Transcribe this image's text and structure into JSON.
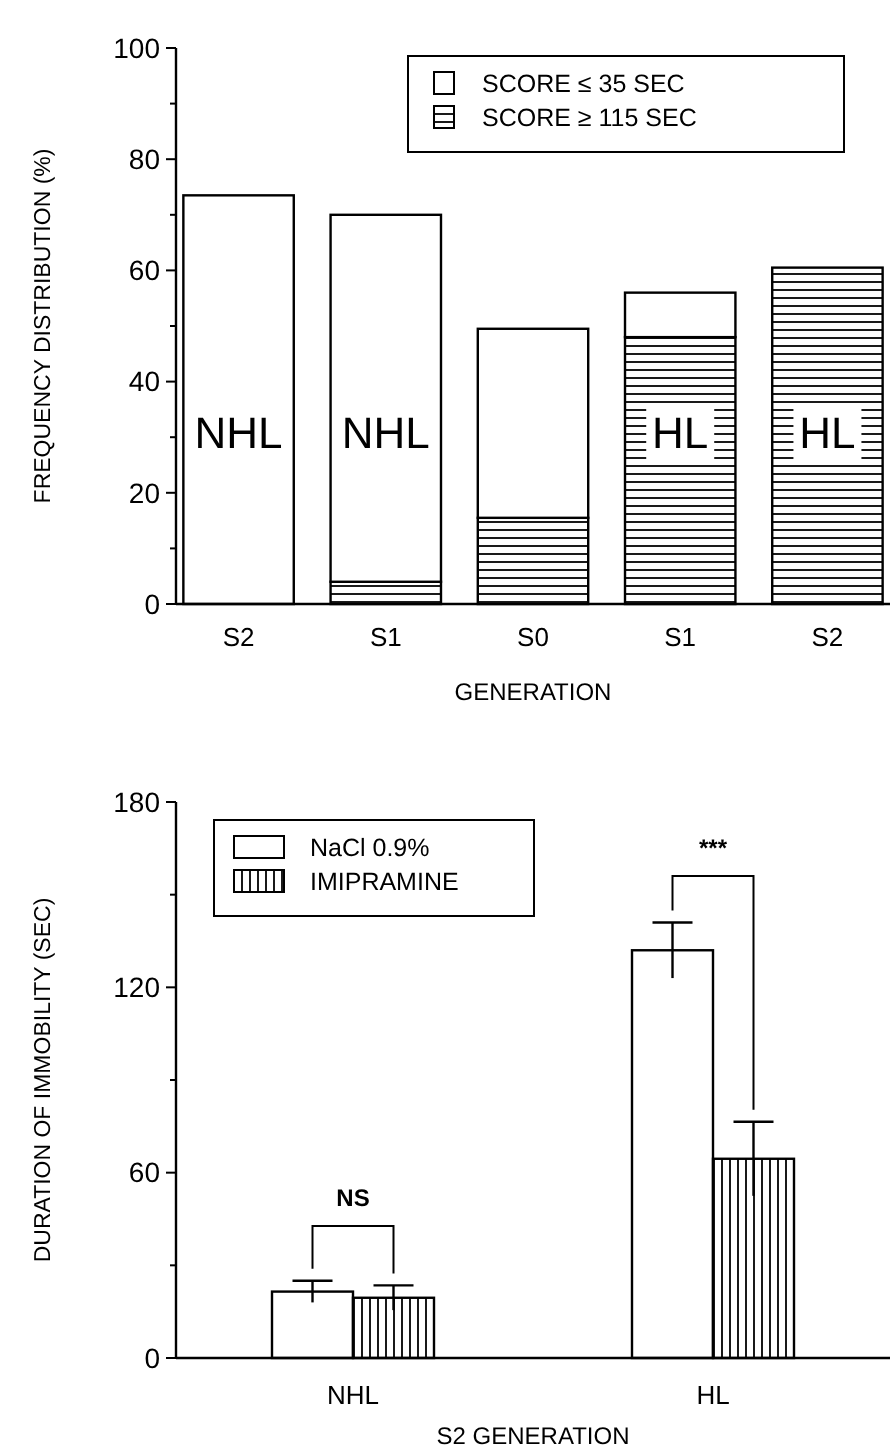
{
  "chart_data": [
    {
      "type": "bar",
      "xlabel": "GENERATION",
      "ylabel": "FREQUENCY DISTRIBUTION (%)",
      "categories": [
        "S2",
        "S1",
        "S0",
        "S1",
        "S2"
      ],
      "stacked": true,
      "series": [
        {
          "name": "SCORE ≥ 115 SEC",
          "color": "#000000",
          "values": [
            0,
            4,
            15.5,
            48,
            60.5
          ]
        },
        {
          "name": "SCORE ≤   35 SEC",
          "color": "#ffffff",
          "values": [
            73.5,
            66,
            34,
            8,
            0
          ]
        }
      ],
      "ylim": [
        0,
        100
      ],
      "yticks": [
        0,
        {
          "value": 10,
          "label": null
        },
        20,
        {
          "value": 30,
          "label": null
        },
        40,
        {
          "value": 50,
          "label": null
        },
        60,
        {
          "value": 70,
          "label": null
        },
        80,
        {
          "value": 90,
          "label": null
        },
        100
      ],
      "legend": "top right",
      "annotations": [
        "NHL",
        "NHL",
        "HL",
        "HL"
      ]
    },
    {
      "type": "bar",
      "xlabel": "S2 GENERATION",
      "ylabel": "DURATION OF IMMOBILITY (SEC)",
      "categories": [
        "NHL",
        "HL"
      ],
      "series": [
        {
          "name": "NaCl 0.9%",
          "color": "#ffffff",
          "values": [
            21.5,
            132
          ],
          "errors": [
            3.5,
            9
          ]
        },
        {
          "name": "IMIPRAMINE",
          "color": "#000000",
          "values": [
            19.5,
            64.5
          ],
          "errors": [
            4,
            12
          ]
        }
      ],
      "ylim": [
        0,
        180
      ],
      "yticks": [
        0,
        {
          "value": 30,
          "label": null
        },
        60,
        {
          "value": 90,
          "label": null
        },
        120,
        {
          "value": 150,
          "label": null
        },
        180
      ],
      "legend": "top left",
      "annotations": [
        "NS",
        "***"
      ]
    }
  ]
}
